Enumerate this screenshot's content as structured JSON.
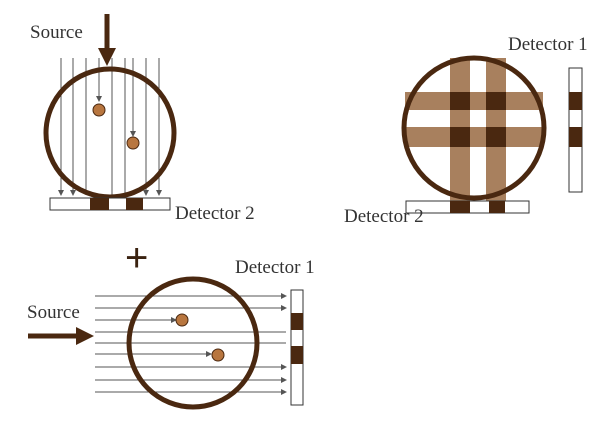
{
  "labels": {
    "source_top": "Source",
    "source_left": "Source",
    "detector_2_top": "Detector 2",
    "detector_1_bottom": "Detector 1",
    "detector_1_right": "Detector 1",
    "detector_2_right": "Detector 2",
    "plus": "+"
  },
  "colors": {
    "dark_brown": "#4a2810",
    "ball": "#b8763f",
    "band": "#a8805e",
    "ray": "#555555"
  }
}
